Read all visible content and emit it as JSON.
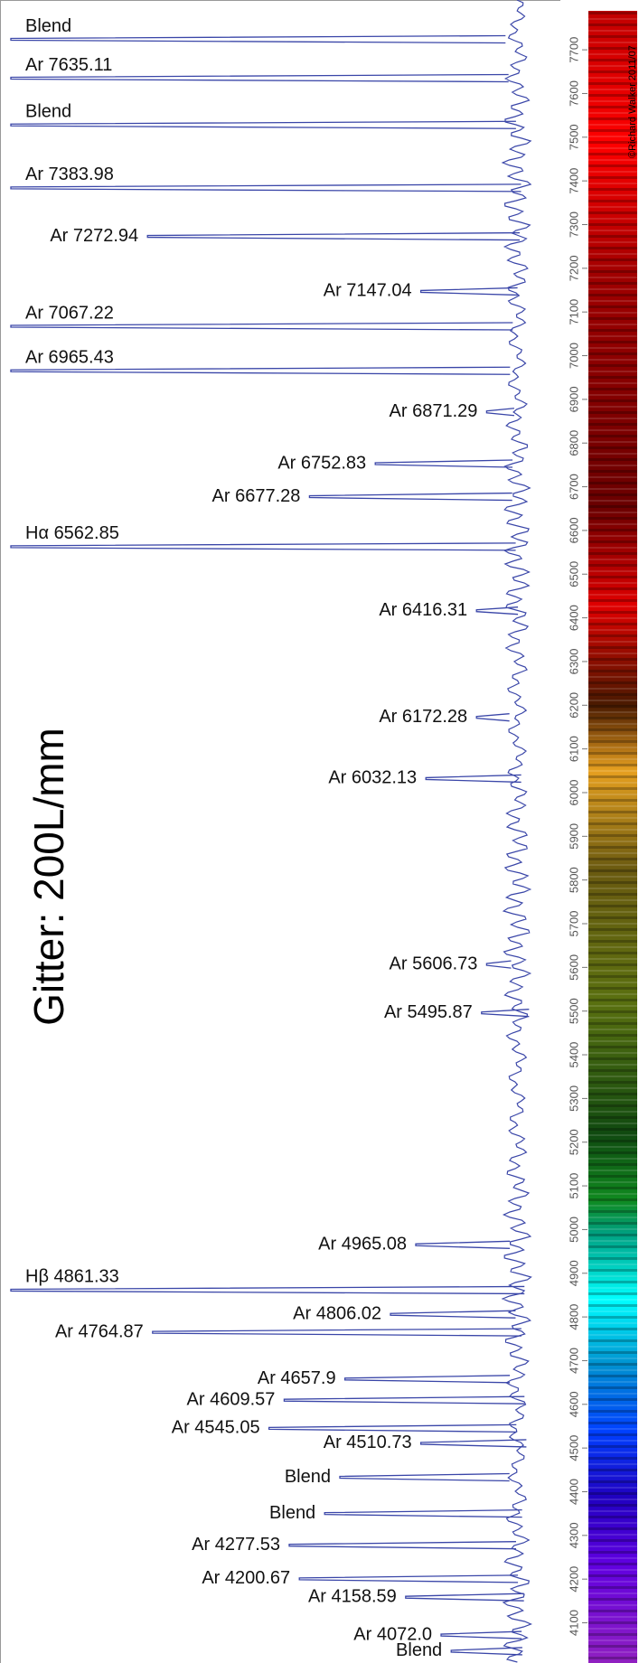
{
  "chart_data": {
    "type": "spectrum",
    "title": "Gitter: 200L/mm",
    "credit": "©Richard Walker 2011/07",
    "color": "#3a46a8",
    "ylim": [
      4008,
      7814
    ],
    "xlim": [
      0,
      100
    ],
    "yticks": [
      4100,
      4200,
      4300,
      4400,
      4500,
      4600,
      4700,
      4800,
      4900,
      5000,
      5100,
      5200,
      5300,
      5400,
      5500,
      5600,
      5700,
      5800,
      5900,
      6000,
      6100,
      6200,
      6300,
      6400,
      6500,
      6600,
      6700,
      6800,
      6900,
      7000,
      7100,
      7200,
      7300,
      7400,
      7500,
      7600,
      7700
    ],
    "lines": {
      "labels": [
        "Blend",
        "Ar 7635.11",
        "Blend",
        "Ar 7383.98",
        "Ar 7272.94",
        "Ar 7147.04",
        "Ar 7067.22",
        "Ar 6965.43",
        "Ar 6871.29",
        "Ar 6752.83",
        "Ar 6677.28",
        "Hα 6562.85",
        "Ar 6416.31",
        "Ar 6172.28",
        "Ar 6032.13",
        "Ar 5606.73",
        "Ar 5495.87",
        "Ar 4965.08",
        "Hβ 4861.33",
        "Ar 4806.02",
        "Ar 4764.87",
        "Ar 4657.9",
        "Ar 4609.57",
        "Ar 4545.05",
        "Ar 4510.73",
        "Blend",
        "Blend",
        "Ar 4277.53",
        "Ar 4200.67",
        "Ar 4158.59",
        "Ar 4072.0",
        "Blend"
      ],
      "wavelengths": [
        7724,
        7635.11,
        7528,
        7383.98,
        7272.94,
        7147.04,
        7067.22,
        6965.43,
        6871.29,
        6752.83,
        6677.28,
        6562.85,
        6416.31,
        6172.28,
        6032.13,
        5606.73,
        5495.87,
        4965.08,
        4861.33,
        4806.02,
        4764.87,
        4657.9,
        4609.57,
        4545.05,
        4510.73,
        4433,
        4350,
        4277.53,
        4200.67,
        4158.59,
        4072.0,
        4035
      ],
      "intensities": [
        100,
        100,
        100,
        100,
        73,
        19,
        100,
        100,
        6,
        28,
        41,
        100,
        8,
        8,
        18,
        6,
        7,
        20,
        100,
        25,
        72,
        34,
        46,
        49,
        19,
        35,
        38,
        45,
        43,
        22,
        15,
        13
      ]
    }
  }
}
